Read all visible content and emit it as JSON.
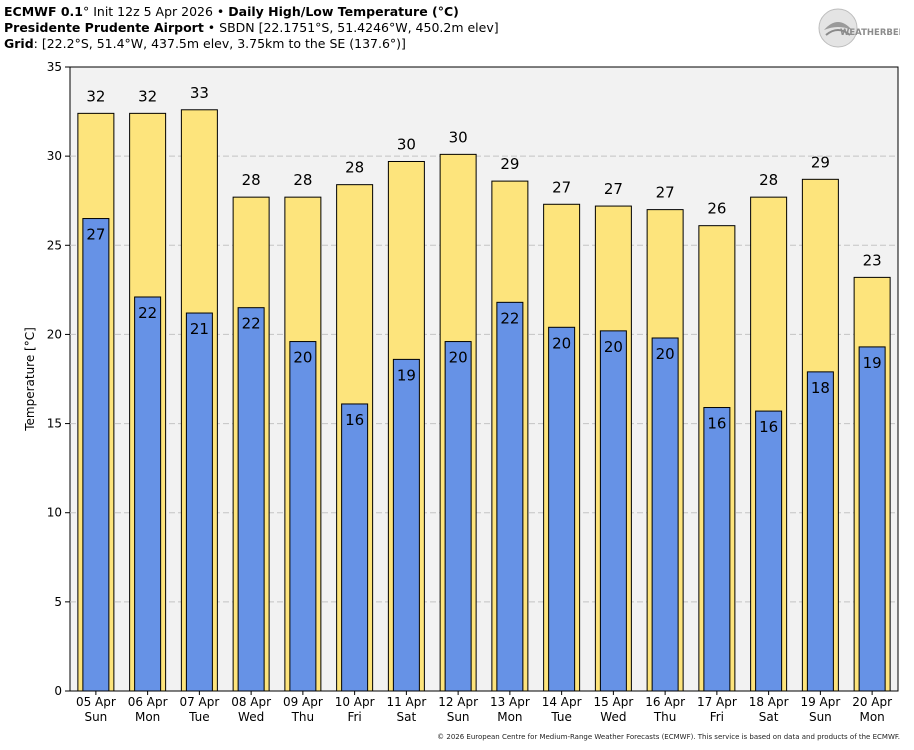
{
  "header": {
    "line1": {
      "model": "ECMWF 0.1",
      "deg": "°",
      "init": " Init 12z 5 Apr 2026",
      "bullet": " • ",
      "title": "Daily High/Low Temperature (°C)"
    },
    "line2": {
      "station": "Presidente Prudente Airport",
      "bullet": " • ",
      "details": "SBDN [22.1751°S, 51.4246°W, 450.2m elev]"
    },
    "line3": {
      "label": "Grid",
      "details": ": [22.2°S, 51.4°W, 437.5m elev, 3.75km to the SE (137.6°)]"
    }
  },
  "logo": {
    "text": "WEATHERBELL",
    "icon": "weatherbell-logo-icon"
  },
  "footer": {
    "text": "© 2026 European Centre for Medium-Range Weather Forecasts (ECMWF). This service is based on data and products of the ECMWF."
  },
  "colors": {
    "high": "#fde47c",
    "low": "#6692e6",
    "plot_bg": "#f2f2f2",
    "grid": "#c4c4c4"
  },
  "chart_data": {
    "type": "bar",
    "ylabel": "Temperature [°C]",
    "ylim": [
      0,
      35
    ],
    "yticks": [
      0,
      5,
      10,
      15,
      20,
      25,
      30,
      35
    ],
    "grid": true,
    "categories": [
      {
        "date": "05 Apr",
        "day": "Sun"
      },
      {
        "date": "06 Apr",
        "day": "Mon"
      },
      {
        "date": "07 Apr",
        "day": "Tue"
      },
      {
        "date": "08 Apr",
        "day": "Wed"
      },
      {
        "date": "09 Apr",
        "day": "Thu"
      },
      {
        "date": "10 Apr",
        "day": "Fri"
      },
      {
        "date": "11 Apr",
        "day": "Sat"
      },
      {
        "date": "12 Apr",
        "day": "Sun"
      },
      {
        "date": "13 Apr",
        "day": "Mon"
      },
      {
        "date": "14 Apr",
        "day": "Tue"
      },
      {
        "date": "15 Apr",
        "day": "Wed"
      },
      {
        "date": "16 Apr",
        "day": "Thu"
      },
      {
        "date": "17 Apr",
        "day": "Fri"
      },
      {
        "date": "18 Apr",
        "day": "Sat"
      },
      {
        "date": "19 Apr",
        "day": "Sun"
      },
      {
        "date": "20 Apr",
        "day": "Mon"
      }
    ],
    "series": [
      {
        "key": "high",
        "values": [
          32.4,
          32.4,
          32.6,
          27.7,
          27.7,
          28.4,
          29.7,
          30.1,
          28.6,
          27.3,
          27.2,
          27.0,
          26.1,
          27.7,
          28.7,
          23.2
        ],
        "labels": [
          "32",
          "32",
          "33",
          "28",
          "28",
          "28",
          "30",
          "30",
          "29",
          "27",
          "27",
          "27",
          "26",
          "28",
          "29",
          "23"
        ]
      },
      {
        "key": "low",
        "values": [
          26.5,
          22.1,
          21.2,
          21.5,
          19.6,
          16.1,
          18.6,
          19.6,
          21.8,
          20.4,
          20.2,
          19.8,
          15.9,
          15.7,
          17.9,
          19.3
        ],
        "labels": [
          "27",
          "22",
          "21",
          "22",
          "20",
          "16",
          "19",
          "20",
          "22",
          "20",
          "20",
          "20",
          "16",
          "16",
          "18",
          "19"
        ]
      }
    ]
  }
}
